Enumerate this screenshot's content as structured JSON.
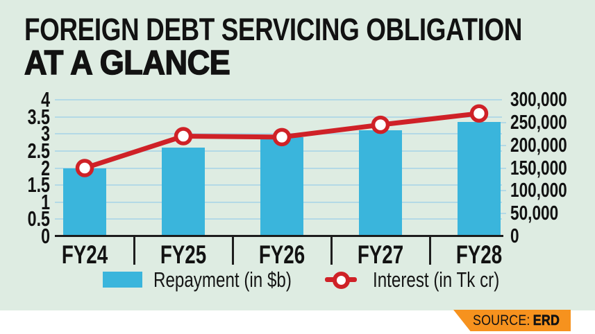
{
  "title": {
    "line1": "FOREIGN DEBT SERVICING OBLIGATION",
    "line2": "AT A GLANCE"
  },
  "source": {
    "prefix": "SOURCE:",
    "value": "ERD"
  },
  "colors": {
    "background": "#deece2",
    "footer_strip": "#ffffff",
    "bar": "#3ab5dc",
    "line": "#cf2127",
    "marker_fill": "#ffffff",
    "grid": "#b3d9e6",
    "axis": "#1c1c1c",
    "text": "#121212",
    "badge": "#f6921e"
  },
  "chart_data": {
    "type": "bar+line combo",
    "categories": [
      "FY24",
      "FY25",
      "FY26",
      "FY27",
      "FY28"
    ],
    "series": [
      {
        "name": "Repayment (in $b)",
        "type": "bar",
        "axis": "left",
        "values": [
          2.0,
          2.6,
          2.9,
          3.1,
          3.35
        ]
      },
      {
        "name": "Interest (in Tk cr)",
        "type": "line",
        "axis": "right",
        "values": [
          150000,
          220000,
          218000,
          245000,
          270000
        ]
      }
    ],
    "left_axis": {
      "min": 0,
      "max": 4,
      "step": 0.5,
      "tick_labels": [
        "4",
        "3.5",
        "3",
        "2.5",
        "2",
        "1.5",
        "1",
        "0.5",
        "0"
      ]
    },
    "right_axis": {
      "min": 0,
      "max": 300000,
      "step": 50000,
      "tick_labels": [
        "300,000",
        "250,000",
        "200,000",
        "150,000",
        "100,000",
        "50,000",
        "0"
      ]
    },
    "grid": true,
    "legend_position": "bottom"
  }
}
